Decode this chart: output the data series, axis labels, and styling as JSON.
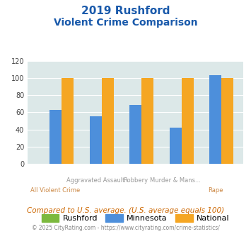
{
  "title_line1": "2019 Rushford",
  "title_line2": "Violent Crime Comparison",
  "cat_line1": [
    "",
    "Aggravated Assault",
    "Robbery",
    "Murder & Mans...",
    ""
  ],
  "cat_line2": [
    "All Violent Crime",
    "",
    "",
    "",
    "Rape"
  ],
  "rushford": [
    0,
    0,
    0,
    0,
    0
  ],
  "minnesota": [
    63,
    55,
    69,
    42,
    103
  ],
  "national": [
    100,
    100,
    100,
    100,
    100
  ],
  "bar_color_rushford": "#7cb93e",
  "bar_color_minnesota": "#4d8fdb",
  "bar_color_national": "#f5a623",
  "ylim": [
    0,
    120
  ],
  "yticks": [
    0,
    20,
    40,
    60,
    80,
    100,
    120
  ],
  "background_color": "#dce8e8",
  "title_color": "#1a5aab",
  "cat_color1": "#999999",
  "cat_color2": "#cc8844",
  "legend_labels": [
    "Rushford",
    "Minnesota",
    "National"
  ],
  "footnote1": "Compared to U.S. average. (U.S. average equals 100)",
  "footnote2": "© 2025 CityRating.com - https://www.cityrating.com/crime-statistics/",
  "footnote1_color": "#cc6600",
  "footnote2_color": "#888888"
}
